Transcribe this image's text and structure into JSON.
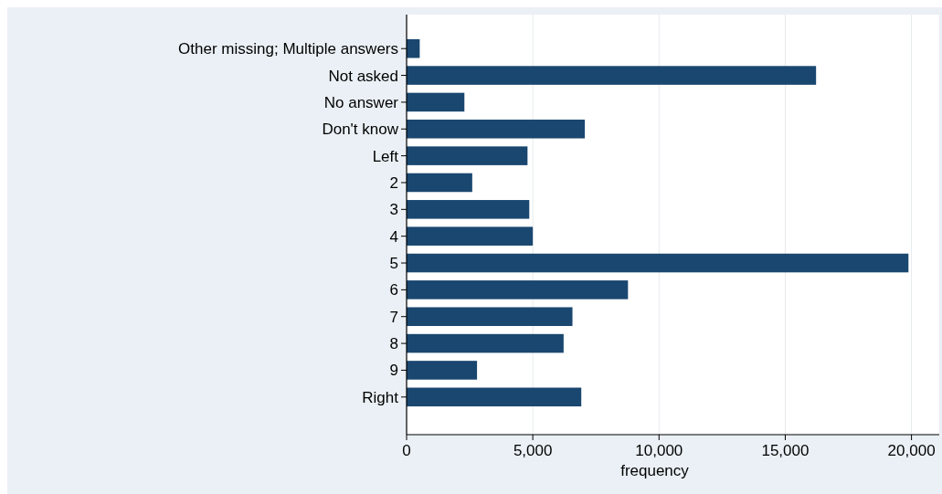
{
  "chart_data": {
    "type": "bar",
    "orientation": "horizontal",
    "xlabel": "frequency",
    "categories": [
      "Other missing; Multiple answers",
      "Not asked",
      "No answer",
      "Don't know",
      "Left",
      "2",
      "3",
      "4",
      "5",
      "6",
      "7",
      "8",
      "9",
      "Right"
    ],
    "values": [
      520,
      16220,
      2290,
      7060,
      4790,
      2600,
      4860,
      5000,
      19880,
      8770,
      6570,
      6220,
      2790,
      6920
    ],
    "color": "#1a476f",
    "xlim": [
      0,
      21100
    ],
    "xticks": [
      0,
      {
        "value": 5000,
        "label": "5,000"
      },
      {
        "value": 10000,
        "label": "10,000"
      },
      {
        "value": 15000,
        "label": "15,000"
      },
      {
        "value": 20000,
        "label": "20,000"
      }
    ],
    "grid": "x"
  }
}
